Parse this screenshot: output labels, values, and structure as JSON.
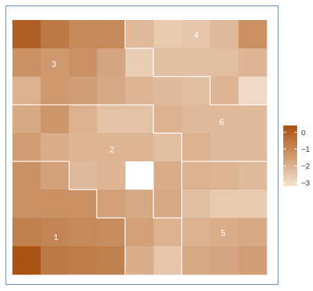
{
  "chart_data": {
    "type": "heatmap",
    "title": "",
    "xlabel": "",
    "ylabel": "",
    "rows": 9,
    "cols": 9,
    "value_range": [
      -3.2,
      0.4
    ],
    "missing": "NA",
    "values": [
      [
        0.0,
        -0.6,
        -1.0,
        -1.0,
        -2.2,
        -2.6,
        -2.5,
        -2.2,
        -1.2
      ],
      [
        -1.2,
        -1.4,
        -1.2,
        -1.7,
        -2.7,
        -2.3,
        -2.3,
        -2.3,
        -2.1
      ],
      [
        -2.0,
        -1.4,
        -1.5,
        -1.8,
        -2.1,
        -2.2,
        -2.3,
        -2.1,
        -3.0
      ],
      [
        -1.8,
        -1.3,
        -2.0,
        -2.4,
        -2.4,
        -2.0,
        -2.2,
        -2.2,
        -2.2
      ],
      [
        -1.5,
        -1.9,
        -2.1,
        -2.1,
        -2.1,
        -2.3,
        -2.0,
        -2.2,
        -2.2
      ],
      [
        -1.2,
        -1.6,
        -2.2,
        -2.1,
        "NA",
        -1.9,
        -2.0,
        -2.1,
        -2.2
      ],
      [
        -1.2,
        -1.2,
        -1.2,
        -1.6,
        -1.8,
        -1.8,
        -2.3,
        -2.6,
        -2.6
      ],
      [
        -0.8,
        -0.9,
        -1.0,
        -1.1,
        -1.6,
        -2.0,
        -2.0,
        -1.9,
        -1.8
      ],
      [
        0.3,
        -0.6,
        -0.7,
        -0.8,
        -1.9,
        -2.5,
        -1.8,
        -1.7,
        -1.5
      ]
    ],
    "regions": [
      {
        "label": "1"
      },
      {
        "label": "2"
      },
      {
        "label": "3"
      },
      {
        "label": "4"
      },
      {
        "label": "5"
      },
      {
        "label": "6"
      }
    ],
    "colorbar": {
      "ticks": [
        0,
        -1,
        -2,
        -3
      ],
      "tick_labels": [
        "0",
        "−1",
        "−2",
        "−3"
      ],
      "color_high": "#a8500f",
      "color_low": "#f4e2d0"
    },
    "missing_color": "#ffffff",
    "boundary_color": "#ffffff",
    "grid": false,
    "legend_placement": "right"
  }
}
